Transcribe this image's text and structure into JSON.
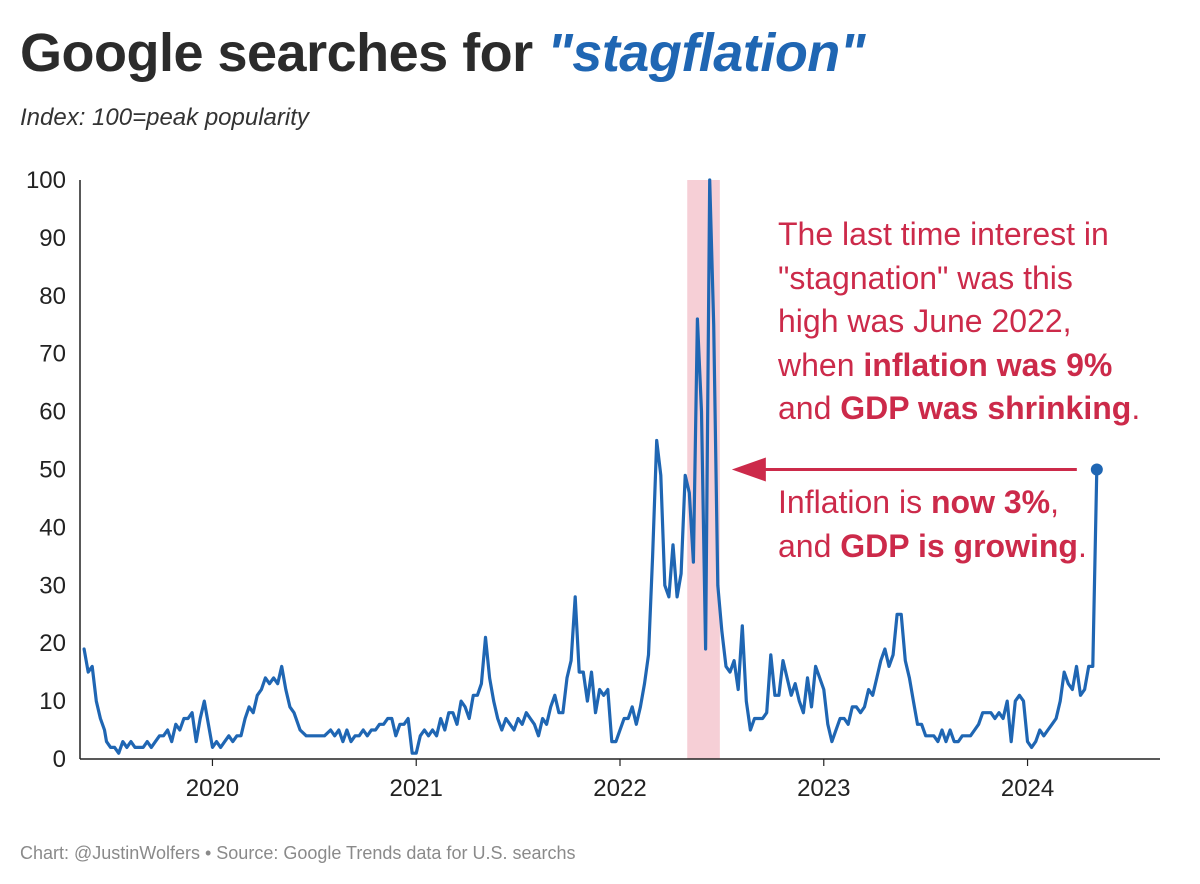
{
  "header": {
    "title_prefix": "Google searches for ",
    "title_term": "\"stagflation\"",
    "subtitle": "Index: 100=peak popularity"
  },
  "footer": {
    "source": "Chart: @JustinWolfers • Source: Google Trends data for U.S. searchs"
  },
  "annotation": {
    "top_lines": [
      [
        "The last time interest in"
      ],
      [
        "\"stagnation\" was this"
      ],
      [
        "high was June 2022,"
      ],
      [
        "when ",
        {
          "b": "inflation was 9%"
        }
      ],
      [
        "and ",
        {
          "b": "GDP was shrinking"
        },
        "."
      ]
    ],
    "bottom_lines": [
      [
        "Inflation is ",
        {
          "b": "now 3%"
        },
        ","
      ],
      [
        "and ",
        {
          "b": "GDP is growing"
        },
        "."
      ]
    ]
  },
  "colors": {
    "line": "#1f66b3",
    "highlight": "#f6cfd6",
    "annotation": "#cc2a4a",
    "title": "#2b2b2b"
  },
  "chart_data": {
    "type": "line",
    "title": "Google searches for \"stagflation\"",
    "subtitle": "Index: 100=peak popularity",
    "xlabel": "",
    "ylabel": "",
    "ylim": [
      0,
      100
    ],
    "yticks": [
      0,
      10,
      20,
      30,
      40,
      50,
      60,
      70,
      80,
      90,
      100
    ],
    "xlim": [
      2019.35,
      2024.65
    ],
    "xticks": [
      "2020",
      "2021",
      "2022",
      "2023",
      "2024"
    ],
    "grid": false,
    "highlight_band": {
      "x0": 2022.33,
      "x1": 2022.49
    },
    "series": [
      {
        "x": [
          2019.37,
          2019.39,
          2019.41,
          2019.43,
          2019.45,
          2019.47,
          2019.48,
          2019.5,
          2019.52,
          2019.54,
          2019.56,
          2019.58,
          2019.6,
          2019.62,
          2019.64,
          2019.66,
          2019.68,
          2019.7,
          2019.72,
          2019.74,
          2019.76,
          2019.78,
          2019.8,
          2019.82,
          2019.84,
          2019.86,
          2019.88,
          2019.9,
          2019.92,
          2019.94,
          2019.96,
          2019.98,
          2020.0,
          2020.02,
          2020.04,
          2020.06,
          2020.08,
          2020.1,
          2020.12,
          2020.14,
          2020.16,
          2020.18,
          2020.2,
          2020.22,
          2020.24,
          2020.26,
          2020.28,
          2020.3,
          2020.32,
          2020.34,
          2020.36,
          2020.38,
          2020.4,
          2020.43,
          2020.46,
          2020.5,
          2020.55,
          2020.58,
          2020.6,
          2020.62,
          2020.64,
          2020.66,
          2020.68,
          2020.7,
          2020.72,
          2020.74,
          2020.76,
          2020.78,
          2020.8,
          2020.82,
          2020.84,
          2020.86,
          2020.88,
          2020.9,
          2020.92,
          2020.94,
          2020.96,
          2020.98,
          2021.0,
          2021.02,
          2021.04,
          2021.06,
          2021.08,
          2021.1,
          2021.12,
          2021.14,
          2021.16,
          2021.18,
          2021.2,
          2021.22,
          2021.24,
          2021.26,
          2021.28,
          2021.3,
          2021.32,
          2021.34,
          2021.36,
          2021.38,
          2021.4,
          2021.42,
          2021.44,
          2021.46,
          2021.48,
          2021.5,
          2021.52,
          2021.54,
          2021.56,
          2021.58,
          2021.6,
          2021.62,
          2021.64,
          2021.66,
          2021.68,
          2021.7,
          2021.72,
          2021.74,
          2021.76,
          2021.78,
          2021.8,
          2021.82,
          2021.84,
          2021.86,
          2021.88,
          2021.9,
          2021.92,
          2021.94,
          2021.96,
          2021.98,
          2022.0,
          2022.02,
          2022.04,
          2022.06,
          2022.08,
          2022.1,
          2022.12,
          2022.14,
          2022.16,
          2022.18,
          2022.2,
          2022.22,
          2022.24,
          2022.26,
          2022.28,
          2022.3,
          2022.32,
          2022.34,
          2022.36,
          2022.38,
          2022.4,
          2022.42,
          2022.44,
          2022.46,
          2022.48,
          2022.5,
          2022.52,
          2022.54,
          2022.56,
          2022.58,
          2022.6,
          2022.62,
          2022.64,
          2022.66,
          2022.68,
          2022.7,
          2022.72,
          2022.74,
          2022.76,
          2022.78,
          2022.8,
          2022.82,
          2022.84,
          2022.86,
          2022.88,
          2022.9,
          2022.92,
          2022.94,
          2022.96,
          2022.98,
          2023.0,
          2023.02,
          2023.04,
          2023.06,
          2023.08,
          2023.1,
          2023.12,
          2023.14,
          2023.16,
          2023.18,
          2023.2,
          2023.22,
          2023.24,
          2023.26,
          2023.28,
          2023.3,
          2023.32,
          2023.34,
          2023.36,
          2023.38,
          2023.4,
          2023.42,
          2023.44,
          2023.46,
          2023.48,
          2023.5,
          2023.52,
          2023.54,
          2023.56,
          2023.58,
          2023.6,
          2023.62,
          2023.64,
          2023.66,
          2023.68,
          2023.7,
          2023.72,
          2023.74,
          2023.76,
          2023.78,
          2023.8,
          2023.82,
          2023.84,
          2023.86,
          2023.88,
          2023.9,
          2023.92,
          2023.94,
          2023.96,
          2023.98,
          2024.0,
          2024.02,
          2024.04,
          2024.06,
          2024.08,
          2024.1,
          2024.12,
          2024.14,
          2024.16,
          2024.18,
          2024.2,
          2024.22,
          2024.24,
          2024.26,
          2024.28,
          2024.3,
          2024.32,
          2024.34
        ],
        "y": [
          19,
          15,
          16,
          10,
          7,
          5,
          3,
          2,
          2,
          1,
          3,
          2,
          3,
          2,
          2,
          2,
          3,
          2,
          3,
          4,
          4,
          5,
          3,
          6,
          5,
          7,
          7,
          8,
          3,
          7,
          10,
          6,
          2,
          3,
          2,
          3,
          4,
          3,
          4,
          4,
          7,
          9,
          8,
          11,
          12,
          14,
          13,
          14,
          13,
          16,
          12,
          9,
          8,
          5,
          4,
          4,
          4,
          5,
          4,
          5,
          3,
          5,
          3,
          4,
          4,
          5,
          4,
          5,
          5,
          6,
          6,
          7,
          7,
          4,
          6,
          6,
          7,
          1,
          1,
          4,
          5,
          4,
          5,
          4,
          7,
          5,
          8,
          8,
          6,
          10,
          9,
          7,
          11,
          11,
          13,
          21,
          14,
          10,
          7,
          5,
          7,
          6,
          5,
          7,
          6,
          8,
          7,
          6,
          4,
          7,
          6,
          9,
          11,
          8,
          8,
          14,
          17,
          28,
          15,
          15,
          10,
          15,
          8,
          12,
          11,
          12,
          3,
          3,
          5,
          7,
          7,
          9,
          6,
          9,
          13,
          18,
          35,
          55,
          49,
          30,
          28,
          37,
          28,
          32,
          49,
          46,
          34,
          76,
          60,
          19,
          100,
          75,
          30,
          22,
          16,
          15,
          17,
          12,
          23,
          10,
          5,
          7,
          7,
          7,
          8,
          18,
          11,
          11,
          17,
          14,
          11,
          13,
          10,
          8,
          14,
          9,
          16,
          14,
          12,
          6,
          3,
          5,
          7,
          7,
          6,
          9,
          9,
          8,
          9,
          12,
          11,
          14,
          17,
          19,
          16,
          18,
          25,
          25,
          17,
          14,
          10,
          6,
          6,
          4,
          4,
          4,
          3,
          5,
          3,
          5,
          3,
          3,
          4,
          4,
          4,
          5,
          6,
          8,
          8,
          8,
          7,
          8,
          7,
          10,
          3,
          10,
          11,
          10,
          3,
          2,
          3,
          5,
          4,
          5,
          6,
          7,
          10,
          15,
          13,
          12,
          16,
          11,
          12,
          16,
          16,
          50
        ]
      }
    ]
  }
}
